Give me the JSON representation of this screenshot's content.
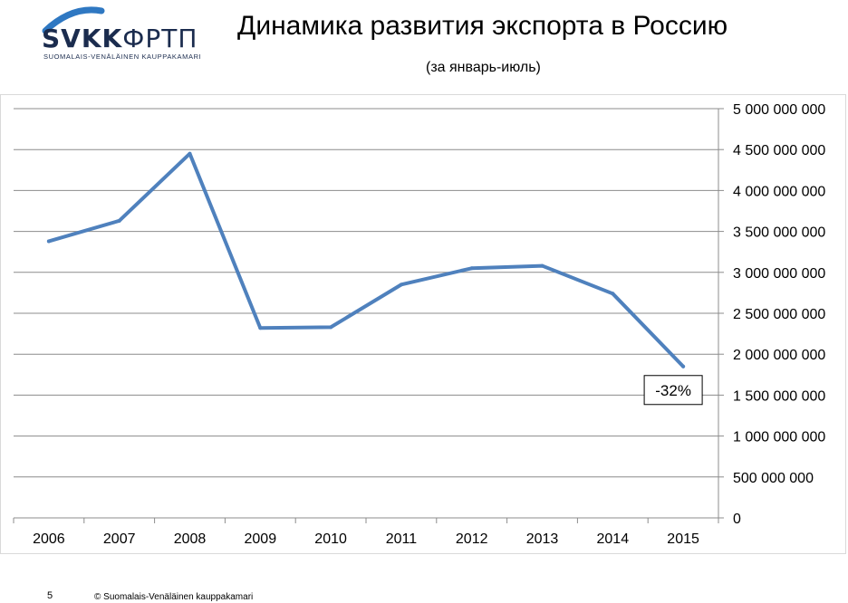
{
  "header": {
    "title": "Динамика развития экспорта в Россию",
    "subtitle": "(за январь-июль)"
  },
  "logo": {
    "word_bold": "SVKK",
    "word_light": "ФРТП",
    "tagline": "SUOMALAIS-VENÄLÄINEN KAUPPAKAMARI",
    "arc_color": "#2f78c2",
    "text_color": "#1b2c4e"
  },
  "chart_data": {
    "type": "line",
    "categories": [
      "2006",
      "2007",
      "2008",
      "2009",
      "2010",
      "2011",
      "2012",
      "2013",
      "2014",
      "2015"
    ],
    "series": [
      {
        "values": [
          3380000000,
          3630000000,
          4450000000,
          2320000000,
          2330000000,
          2850000000,
          3050000000,
          3080000000,
          2740000000,
          1850000000
        ],
        "color": "#4f81bd"
      }
    ],
    "y_ticks": [
      "5 000 000 000",
      "4 500 000 000",
      "4 000 000 000",
      "3 500 000 000",
      "3 000 000 000",
      "2 500 000 000",
      "2 000 000 000",
      "1 500 000 000",
      "1 000 000 000",
      "500 000 000",
      "0"
    ],
    "ylim": [
      0,
      5000000000
    ],
    "grid": true,
    "y_axis_side": "right",
    "annotation": {
      "text": "-32%",
      "category": "2015"
    }
  },
  "footer": {
    "page_number": "5",
    "copyright": "© Suomalais-Venäläinen kauppakamari"
  }
}
